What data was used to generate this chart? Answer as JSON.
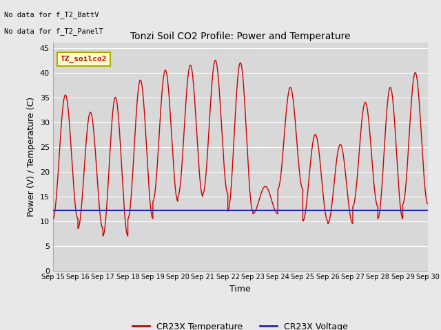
{
  "title": "Tonzi Soil CO2 Profile: Power and Temperature",
  "xlabel": "Time",
  "ylabel": "Power (V) / Temperature (C)",
  "ylim": [
    0,
    46
  ],
  "yticks": [
    0,
    5,
    10,
    15,
    20,
    25,
    30,
    35,
    40,
    45
  ],
  "x_labels": [
    "Sep 15",
    "Sep 16",
    "Sep 17",
    "Sep 18",
    "Sep 19",
    "Sep 20",
    "Sep 21",
    "Sep 22",
    "Sep 23",
    "Sep 24",
    "Sep 25",
    "Sep 26",
    "Sep 27",
    "Sep 28",
    "Sep 29",
    "Sep 30"
  ],
  "no_data_text1": "No data for f_T2_BattV",
  "no_data_text2": "No data for f_T2_PanelT",
  "legend_label": "TZ_soilco2",
  "fig_bg_color": "#e8e8e8",
  "plot_bg_color": "#d8d8d8",
  "grid_color": "#ffffff",
  "temp_color": "#cc0000",
  "volt_color": "#2222cc",
  "legend_cr23x_temp": "CR23X Temperature",
  "legend_cr23x_volt": "CR23X Voltage",
  "voltage_value": 12.2,
  "day_data": [
    [
      10.5,
      35.5
    ],
    [
      8.5,
      32.0
    ],
    [
      7.0,
      35.0
    ],
    [
      10.5,
      38.5
    ],
    [
      14.0,
      40.5
    ],
    [
      15.0,
      41.5
    ],
    [
      15.5,
      42.5
    ],
    [
      12.0,
      42.0
    ],
    [
      11.5,
      17.0
    ],
    [
      16.5,
      37.0
    ],
    [
      10.0,
      27.5
    ],
    [
      9.5,
      25.5
    ],
    [
      13.0,
      34.0
    ],
    [
      10.5,
      37.0
    ],
    [
      13.5,
      40.0
    ]
  ]
}
